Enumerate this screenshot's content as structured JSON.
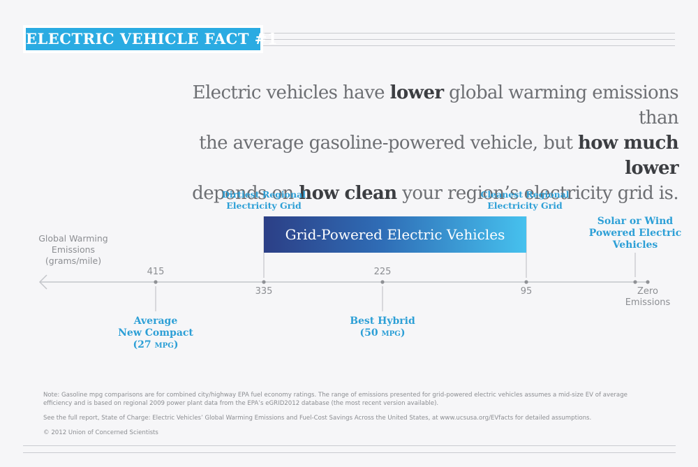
{
  "banner": {
    "title": "ELECTRIC VEHICLE FACT #1"
  },
  "headline": {
    "line1": [
      {
        "text": "Electric vehicles have ",
        "bold": false
      },
      {
        "text": "lower",
        "bold": true
      },
      {
        "text": " global warming emissions than",
        "bold": false
      }
    ],
    "line2": [
      {
        "text": "the average gasoline-powered vehicle, but ",
        "bold": false
      },
      {
        "text": "how much lower",
        "bold": true
      }
    ],
    "line3": [
      {
        "text": "depends on ",
        "bold": false
      },
      {
        "text": "how clean",
        "bold": true
      },
      {
        "text": " your region’s electricity grid is.",
        "bold": false
      }
    ]
  },
  "axis": {
    "title_lines": [
      "Global Warming",
      "Emissions",
      "(grams/mile)"
    ],
    "end_label_lines": [
      "Zero",
      "Emissions"
    ],
    "ticks": [
      {
        "value": "415"
      },
      {
        "value": "335"
      },
      {
        "value": "225"
      },
      {
        "value": "95"
      }
    ]
  },
  "grid_range": {
    "bar_label": "Grid-Powered Electric Vehicles",
    "dirtiest_lines": [
      "Dirtiest Regional",
      "Electricity Grid"
    ],
    "cleanest_lines": [
      "Cleanest Regional",
      "Electricity Grid"
    ]
  },
  "markers": {
    "compact": {
      "lines": [
        "Average",
        "New Compact"
      ],
      "mpg_num": "(27 ",
      "mpg_unit": "MPG",
      "mpg_close": ")"
    },
    "hybrid": {
      "lines": [
        "Best Hybrid"
      ],
      "mpg_num": "(50 ",
      "mpg_unit": "MPG",
      "mpg_close": ")"
    },
    "solar": {
      "lines": [
        "Solar or Wind",
        "Powered Electric",
        "Vehicles"
      ]
    }
  },
  "notes": {
    "note1": "Note: Gasoline mpg comparisons are for combined city/highway EPA fuel economy ratings. The range of emissions presented for grid-powered electric vehicles assumes a mid-size EV of average efficiency and is based on regional 2009 power plant data from the EPA’s eGRID2012 database (the most recent version available).",
    "note2": "See the full report, State of Charge: Electric Vehicles’ Global Warming Emissions and Fuel-Cost Savings Across the United States, at www.ucsusa.org/EVfacts for detailed assumptions.",
    "copyright": "© 2012 Union of Concerned Scientists"
  },
  "colors": {
    "accent": "#2aabe2",
    "label_blue": "#2c9fd6",
    "bar_start": "#2c3f86",
    "bar_end": "#46c1ee",
    "text_gray": "#8c8e92"
  }
}
